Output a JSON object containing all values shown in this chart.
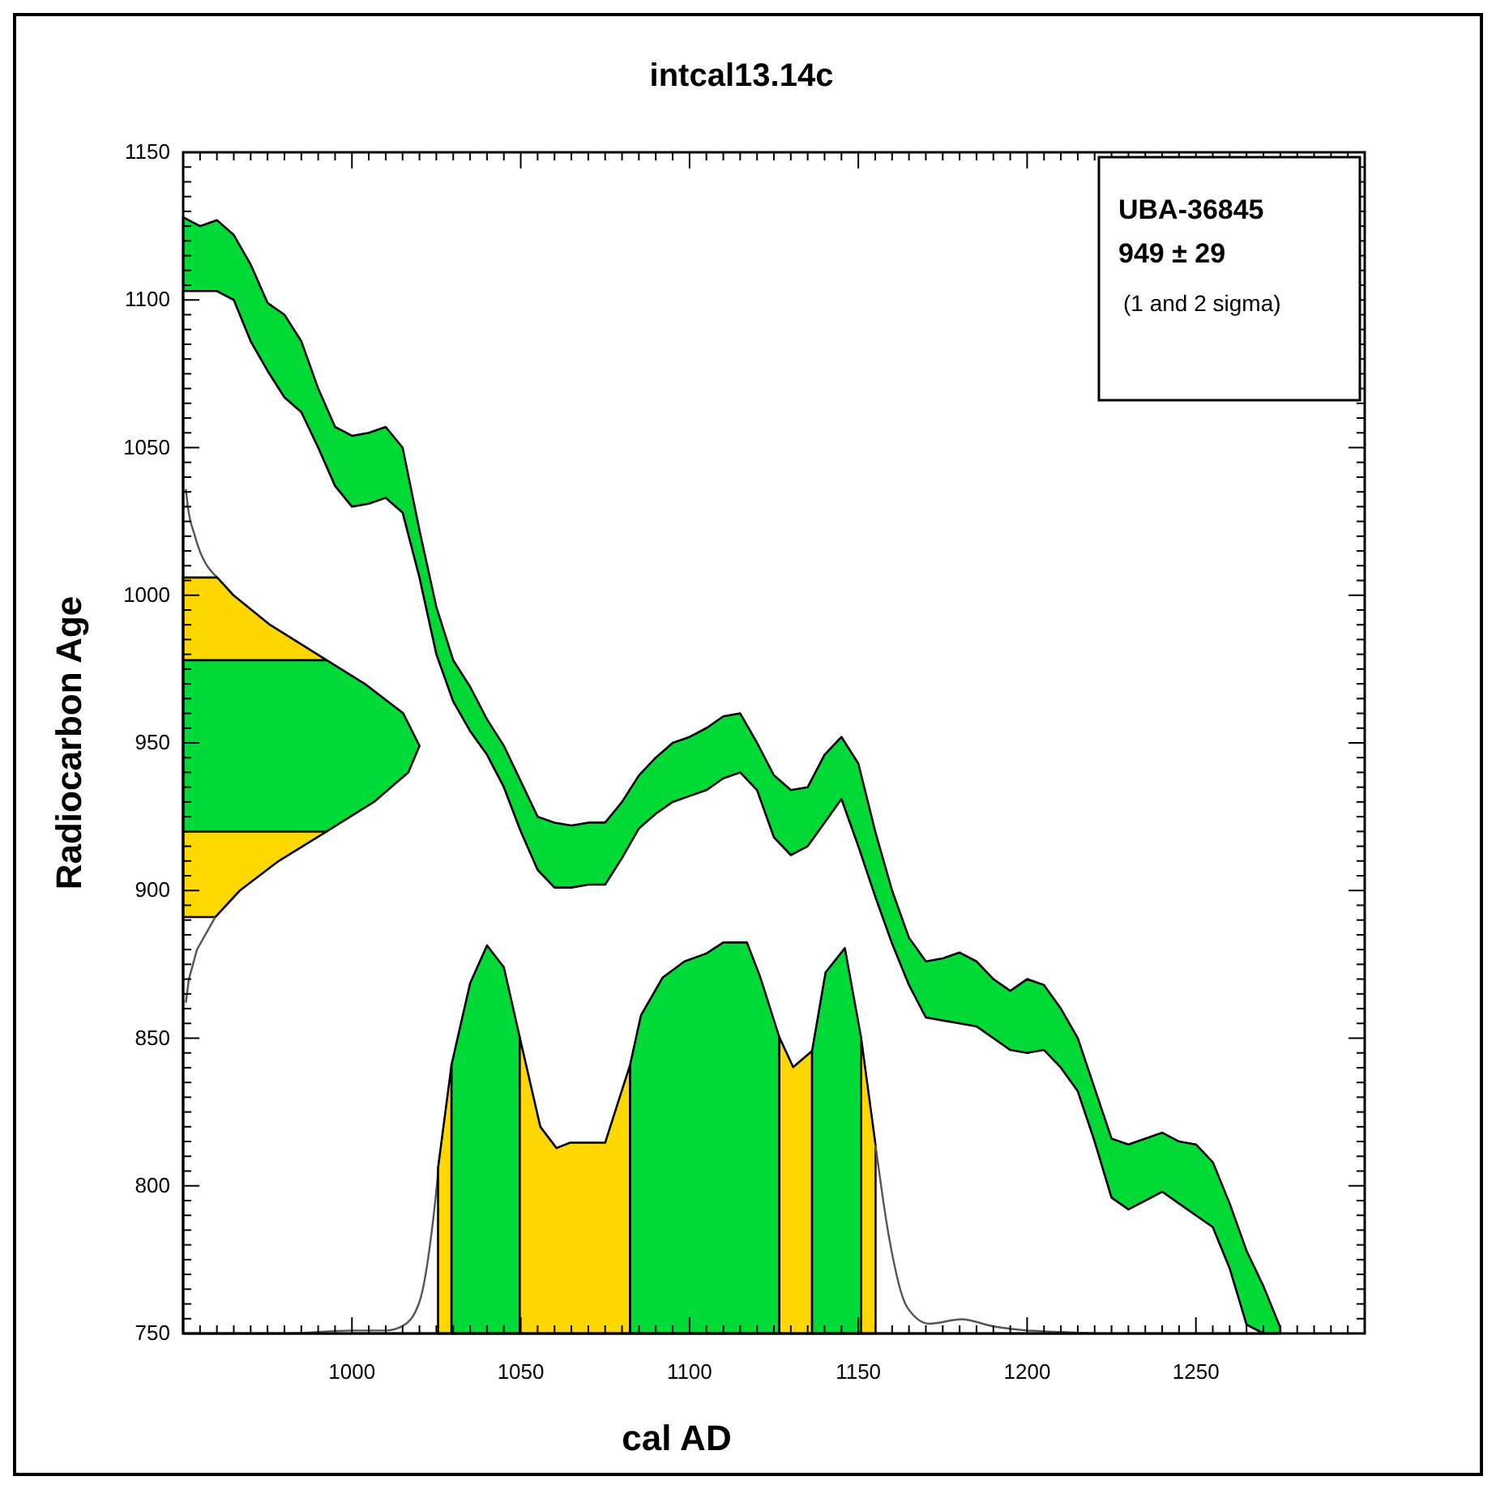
{
  "chart_data": {
    "type": "area",
    "title": "intcal13.14c",
    "xlabel": "cal AD",
    "ylabel": "Radiocarbon Age",
    "xlim": [
      950,
      1300
    ],
    "ylim": [
      750,
      1150
    ],
    "xticks": [
      {
        "value": 955,
        "label": null
      },
      {
        "value": 960,
        "label": null
      },
      {
        "value": 965,
        "label": null
      },
      {
        "value": 970,
        "label": null
      },
      {
        "value": 975,
        "label": null
      },
      {
        "value": 980,
        "label": null
      },
      {
        "value": 985,
        "label": null
      },
      {
        "value": 990,
        "label": null
      },
      {
        "value": 995,
        "label": null
      },
      1000,
      {
        "value": 1005,
        "label": null
      },
      {
        "value": 1010,
        "label": null
      },
      {
        "value": 1015,
        "label": null
      },
      {
        "value": 1020,
        "label": null
      },
      {
        "value": 1025,
        "label": null
      },
      {
        "value": 1030,
        "label": null
      },
      {
        "value": 1035,
        "label": null
      },
      {
        "value": 1040,
        "label": null
      },
      {
        "value": 1045,
        "label": null
      },
      1050,
      {
        "value": 1055,
        "label": null
      },
      {
        "value": 1060,
        "label": null
      },
      {
        "value": 1065,
        "label": null
      },
      {
        "value": 1070,
        "label": null
      },
      {
        "value": 1075,
        "label": null
      },
      {
        "value": 1080,
        "label": null
      },
      {
        "value": 1085,
        "label": null
      },
      {
        "value": 1090,
        "label": null
      },
      {
        "value": 1095,
        "label": null
      },
      1100,
      {
        "value": 1105,
        "label": null
      },
      {
        "value": 1110,
        "label": null
      },
      {
        "value": 1115,
        "label": null
      },
      {
        "value": 1120,
        "label": null
      },
      {
        "value": 1125,
        "label": null
      },
      {
        "value": 1130,
        "label": null
      },
      {
        "value": 1135,
        "label": null
      },
      {
        "value": 1140,
        "label": null
      },
      {
        "value": 1145,
        "label": null
      },
      1150,
      {
        "value": 1155,
        "label": null
      },
      {
        "value": 1160,
        "label": null
      },
      {
        "value": 1165,
        "label": null
      },
      {
        "value": 1170,
        "label": null
      },
      {
        "value": 1175,
        "label": null
      },
      {
        "value": 1180,
        "label": null
      },
      {
        "value": 1185,
        "label": null
      },
      {
        "value": 1190,
        "label": null
      },
      {
        "value": 1195,
        "label": null
      },
      1200,
      {
        "value": 1205,
        "label": null
      },
      {
        "value": 1210,
        "label": null
      },
      {
        "value": 1215,
        "label": null
      },
      {
        "value": 1220,
        "label": null
      },
      {
        "value": 1225,
        "label": null
      },
      {
        "value": 1230,
        "label": null
      },
      {
        "value": 1235,
        "label": null
      },
      {
        "value": 1240,
        "label": null
      },
      {
        "value": 1245,
        "label": null
      },
      1250,
      {
        "value": 1255,
        "label": null
      },
      {
        "value": 1260,
        "label": null
      },
      {
        "value": 1265,
        "label": null
      },
      {
        "value": 1270,
        "label": null
      },
      {
        "value": 1275,
        "label": null
      },
      {
        "value": 1280,
        "label": null
      },
      {
        "value": 1285,
        "label": null
      },
      {
        "value": 1290,
        "label": null
      },
      {
        "value": 1295,
        "label": null
      }
    ],
    "yticks": [
      750,
      {
        "value": 755,
        "label": null
      },
      {
        "value": 760,
        "label": null
      },
      {
        "value": 765,
        "label": null
      },
      {
        "value": 770,
        "label": null
      },
      {
        "value": 775,
        "label": null
      },
      {
        "value": 780,
        "label": null
      },
      {
        "value": 785,
        "label": null
      },
      {
        "value": 790,
        "label": null
      },
      {
        "value": 795,
        "label": null
      },
      800,
      {
        "value": 805,
        "label": null
      },
      {
        "value": 810,
        "label": null
      },
      {
        "value": 815,
        "label": null
      },
      {
        "value": 820,
        "label": null
      },
      {
        "value": 825,
        "label": null
      },
      {
        "value": 830,
        "label": null
      },
      {
        "value": 835,
        "label": null
      },
      {
        "value": 840,
        "label": null
      },
      {
        "value": 845,
        "label": null
      },
      850,
      {
        "value": 855,
        "label": null
      },
      {
        "value": 860,
        "label": null
      },
      {
        "value": 865,
        "label": null
      },
      {
        "value": 870,
        "label": null
      },
      {
        "value": 875,
        "label": null
      },
      {
        "value": 880,
        "label": null
      },
      {
        "value": 885,
        "label": null
      },
      {
        "value": 890,
        "label": null
      },
      {
        "value": 895,
        "label": null
      },
      900,
      {
        "value": 905,
        "label": null
      },
      {
        "value": 910,
        "label": null
      },
      {
        "value": 915,
        "label": null
      },
      {
        "value": 920,
        "label": null
      },
      {
        "value": 925,
        "label": null
      },
      {
        "value": 930,
        "label": null
      },
      {
        "value": 935,
        "label": null
      },
      {
        "value": 940,
        "label": null
      },
      {
        "value": 945,
        "label": null
      },
      950,
      {
        "value": 955,
        "label": null
      },
      {
        "value": 960,
        "label": null
      },
      {
        "value": 965,
        "label": null
      },
      {
        "value": 970,
        "label": null
      },
      {
        "value": 975,
        "label": null
      },
      {
        "value": 980,
        "label": null
      },
      {
        "value": 985,
        "label": null
      },
      {
        "value": 990,
        "label": null
      },
      {
        "value": 995,
        "label": null
      },
      1000,
      {
        "value": 1005,
        "label": null
      },
      {
        "value": 1010,
        "label": null
      },
      {
        "value": 1015,
        "label": null
      },
      {
        "value": 1020,
        "label": null
      },
      {
        "value": 1025,
        "label": null
      },
      {
        "value": 1030,
        "label": null
      },
      {
        "value": 1035,
        "label": null
      },
      {
        "value": 1040,
        "label": null
      },
      {
        "value": 1045,
        "label": null
      },
      1050,
      {
        "value": 1055,
        "label": null
      },
      {
        "value": 1060,
        "label": null
      },
      {
        "value": 1065,
        "label": null
      },
      {
        "value": 1070,
        "label": null
      },
      {
        "value": 1075,
        "label": null
      },
      {
        "value": 1080,
        "label": null
      },
      {
        "value": 1085,
        "label": null
      },
      {
        "value": 1090,
        "label": null
      },
      {
        "value": 1095,
        "label": null
      },
      1100,
      {
        "value": 1105,
        "label": null
      },
      {
        "value": 1110,
        "label": null
      },
      {
        "value": 1115,
        "label": null
      },
      {
        "value": 1120,
        "label": null
      },
      {
        "value": 1125,
        "label": null
      },
      {
        "value": 1130,
        "label": null
      },
      {
        "value": 1135,
        "label": null
      },
      {
        "value": 1140,
        "label": null
      },
      {
        "value": 1145,
        "label": null
      },
      1150
    ],
    "annotations": [
      "UBA-36845",
      "949 ± 29",
      "(1 and 2 sigma)"
    ],
    "series": [
      {
        "color": "#00d936",
        "x": [
          950,
          955,
          960,
          965,
          970,
          975,
          980,
          985,
          990,
          995,
          1000,
          1005,
          1010,
          1015,
          1020,
          1025,
          1030,
          1035,
          1040,
          1045,
          1050,
          1055,
          1060,
          1065,
          1070,
          1075,
          1080,
          1085,
          1090,
          1095,
          1100,
          1105,
          1110,
          1115,
          1120,
          1125,
          1130,
          1135,
          1140,
          1145,
          1150,
          1155,
          1160,
          1165,
          1170,
          1175,
          1180,
          1185,
          1190,
          1195,
          1200,
          1205,
          1210,
          1215,
          1220,
          1225,
          1230,
          1235,
          1240,
          1245,
          1250,
          1255,
          1260,
          1265,
          1270,
          1275
        ],
        "values": [
          1128,
          1125,
          1127,
          1122,
          1112,
          1099,
          1095,
          1086,
          1070,
          1057,
          1054,
          1055,
          1057,
          1050,
          1022,
          996,
          978,
          969,
          958,
          949,
          937,
          925,
          923,
          922,
          923,
          923,
          930,
          939,
          945,
          950,
          952,
          955,
          959,
          960,
          950,
          939,
          934,
          935,
          946,
          952,
          943,
          920,
          900,
          884,
          876,
          877,
          879,
          876,
          870,
          866,
          870,
          868,
          860,
          850,
          833,
          816,
          814,
          816,
          818,
          815,
          814,
          808,
          794,
          778,
          766,
          752
        ]
      },
      {
        "color": "#ffffff",
        "x": [
          950,
          955,
          960,
          965,
          970,
          975,
          980,
          985,
          990,
          995,
          1000,
          1005,
          1010,
          1015,
          1020,
          1025,
          1030,
          1035,
          1040,
          1045,
          1050,
          1055,
          1060,
          1065,
          1070,
          1075,
          1080,
          1085,
          1090,
          1095,
          1100,
          1105,
          1110,
          1115,
          1120,
          1125,
          1130,
          1135,
          1140,
          1145,
          1150,
          1155,
          1160,
          1165,
          1170,
          1175,
          1180,
          1185,
          1190,
          1195,
          1200,
          1205,
          1210,
          1215,
          1220,
          1225,
          1230,
          1235,
          1240,
          1245,
          1250,
          1255,
          1260,
          1265,
          1270,
          1275
        ],
        "values": [
          1103,
          1103,
          1103,
          1100,
          1086,
          1076,
          1067,
          1062,
          1050,
          1037,
          1030,
          1031,
          1033,
          1028,
          1006,
          980,
          964,
          954,
          946,
          935,
          920,
          907,
          901,
          901,
          902,
          902,
          911,
          921,
          926,
          930,
          932,
          934,
          938,
          940,
          934,
          918,
          912,
          915,
          923,
          931,
          915,
          898,
          882,
          868,
          857,
          856,
          855,
          854,
          850,
          846,
          845,
          846,
          840,
          832,
          815,
          796,
          792,
          795,
          798,
          794,
          790,
          786,
          772,
          753,
          750,
          750
        ]
      },
      {
        "type": "line",
        "color": "#555555",
        "x": [
          950.8,
          951.4,
          953.5,
          960.1
        ],
        "values": [
          1036,
          1030,
          1020,
          1006
        ]
      },
      {
        "color": "#ffd700",
        "x": [
          950,
          960.1,
          964.9,
          975.7,
          992.5,
          950
        ],
        "values": [
          1006,
          1006,
          1000,
          990,
          978,
          978
        ]
      },
      {
        "color": "#00da38",
        "x": [
          950,
          992.5,
          1003.8,
          1015.2,
          1020,
          1016.7,
          1006.5,
          992.5,
          950
        ],
        "values": [
          978,
          978,
          970,
          960,
          949,
          940,
          930,
          920,
          920
        ]
      },
      {
        "color": "#ffd800",
        "x": [
          950,
          992.5,
          978.3,
          966.8,
          959.5,
          950
        ],
        "values": [
          920,
          920,
          910,
          900,
          891,
          891
        ]
      },
      {
        "type": "line",
        "color": "#555555",
        "x": [
          959.5,
          954.1,
          951.7,
          950.8
        ],
        "values": [
          891,
          880,
          870,
          862
        ]
      },
      {
        "type": "line",
        "color": "#555555",
        "x": [
          950,
          980,
          1000,
          1010,
          1015,
          1020,
          1024,
          1026
        ],
        "values": [
          750,
          750,
          751,
          751,
          752.5,
          760.7,
          788,
          810
        ]
      },
      {
        "color": "#ffd700",
        "x": [
          1025.5,
          1029.5
        ],
        "values": [
          806,
          841
        ]
      },
      {
        "color": "#00da38",
        "x": [
          1029.5,
          1035,
          1040,
          1045,
          1049.7
        ],
        "values": [
          841,
          868.6,
          881.4,
          874,
          850.3
        ]
      },
      {
        "color": "#ffd700",
        "x": [
          1049.7,
          1055.8,
          1060.6,
          1064.6,
          1075,
          1082.4
        ],
        "values": [
          850.3,
          820,
          812.8,
          814.6,
          814.6,
          841
        ]
      },
      {
        "color": "#00da38",
        "x": [
          1082.4,
          1085.6,
          1092,
          1098.5,
          1105,
          1110,
          1117,
          1121,
          1126.6
        ],
        "values": [
          841,
          857.7,
          870.5,
          876,
          878.7,
          882.4,
          882.4,
          870.5,
          850.3
        ]
      },
      {
        "color": "#ffd700",
        "x": [
          1126.6,
          1130.7,
          1136.3
        ],
        "values": [
          850.3,
          840.2,
          845.7
        ]
      },
      {
        "color": "#00da38",
        "x": [
          1136.3,
          1140.3,
          1146,
          1150.8
        ],
        "values": [
          845.7,
          872.3,
          880.5,
          850.3
        ]
      },
      {
        "color": "#ffd700",
        "x": [
          1150.8,
          1155.1
        ],
        "values": [
          850.3,
          813.8
        ]
      },
      {
        "type": "line",
        "color": "#555555",
        "x": [
          1155.1,
          1158.8,
          1164.5,
          1171,
          1180.6,
          1190,
          1200,
          1210,
          1220
        ],
        "values": [
          813.8,
          784.5,
          758.8,
          753.3,
          754.8,
          752.4,
          751,
          750.5,
          750
        ]
      }
    ]
  }
}
